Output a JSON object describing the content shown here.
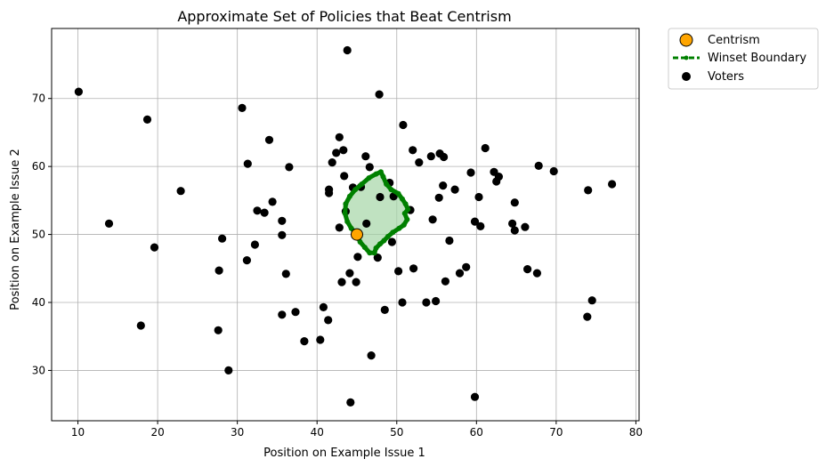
{
  "chart_data": {
    "type": "scatter",
    "title": "Approximate Set of Policies that Beat Centrism",
    "xlabel": "Position on Example Issue 1",
    "ylabel": "Position on Example Issue 2",
    "xlim": [
      6.7,
      80.4
    ],
    "ylim": [
      22.6,
      80.3
    ],
    "xticks": [
      10,
      20,
      30,
      40,
      50,
      60,
      70,
      80
    ],
    "yticks": [
      30,
      40,
      50,
      60,
      70
    ],
    "grid": true,
    "legend_position": "outside-top-right",
    "legend": [
      {
        "label": "Centrism",
        "marker": "circle",
        "color": "#ffa500",
        "edge": "#000000"
      },
      {
        "label": "Winset Boundary",
        "marker": "line-dot",
        "color": "#008000"
      },
      {
        "label": "Voters",
        "marker": "circle",
        "color": "#000000"
      }
    ],
    "colors": {
      "voters": "#000000",
      "centrism": "#ffa500",
      "boundary": "#008000",
      "fill": "#a5d6a7",
      "grid": "#b0b0b0"
    },
    "centrism": {
      "x": 45,
      "y": 50
    },
    "voters": [
      {
        "x": 10.1,
        "y": 71.0
      },
      {
        "x": 13.9,
        "y": 51.6
      },
      {
        "x": 17.9,
        "y": 36.6
      },
      {
        "x": 18.7,
        "y": 66.9
      },
      {
        "x": 19.6,
        "y": 48.1
      },
      {
        "x": 22.9,
        "y": 56.4
      },
      {
        "x": 27.7,
        "y": 44.7
      },
      {
        "x": 27.6,
        "y": 35.9
      },
      {
        "x": 28.1,
        "y": 49.4
      },
      {
        "x": 28.9,
        "y": 30.0
      },
      {
        "x": 30.6,
        "y": 68.6
      },
      {
        "x": 31.3,
        "y": 60.4
      },
      {
        "x": 31.2,
        "y": 46.2
      },
      {
        "x": 32.2,
        "y": 48.5
      },
      {
        "x": 32.5,
        "y": 53.5
      },
      {
        "x": 33.4,
        "y": 53.2
      },
      {
        "x": 34.0,
        "y": 63.9
      },
      {
        "x": 34.4,
        "y": 54.8
      },
      {
        "x": 35.6,
        "y": 52.0
      },
      {
        "x": 35.6,
        "y": 49.9
      },
      {
        "x": 35.6,
        "y": 38.2
      },
      {
        "x": 36.1,
        "y": 44.2
      },
      {
        "x": 36.5,
        "y": 59.9
      },
      {
        "x": 37.3,
        "y": 38.6
      },
      {
        "x": 38.4,
        "y": 34.3
      },
      {
        "x": 40.4,
        "y": 34.5
      },
      {
        "x": 40.8,
        "y": 39.3
      },
      {
        "x": 41.4,
        "y": 37.4
      },
      {
        "x": 41.5,
        "y": 56.6
      },
      {
        "x": 41.5,
        "y": 56.1
      },
      {
        "x": 41.9,
        "y": 60.6
      },
      {
        "x": 42.4,
        "y": 62.0
      },
      {
        "x": 42.8,
        "y": 64.3
      },
      {
        "x": 42.8,
        "y": 51.0
      },
      {
        "x": 43.1,
        "y": 43.0
      },
      {
        "x": 43.3,
        "y": 62.4
      },
      {
        "x": 43.4,
        "y": 58.6
      },
      {
        "x": 43.6,
        "y": 53.4
      },
      {
        "x": 43.8,
        "y": 77.1
      },
      {
        "x": 44.1,
        "y": 44.3
      },
      {
        "x": 44.5,
        "y": 56.9
      },
      {
        "x": 44.9,
        "y": 43.0
      },
      {
        "x": 45.1,
        "y": 46.7
      },
      {
        "x": 45.5,
        "y": 57.0
      },
      {
        "x": 46.1,
        "y": 61.5
      },
      {
        "x": 46.2,
        "y": 51.6
      },
      {
        "x": 46.6,
        "y": 59.9
      },
      {
        "x": 46.8,
        "y": 32.2
      },
      {
        "x": 47.6,
        "y": 46.6
      },
      {
        "x": 47.8,
        "y": 70.6
      },
      {
        "x": 47.9,
        "y": 55.5
      },
      {
        "x": 48.5,
        "y": 38.9
      },
      {
        "x": 49.1,
        "y": 57.6
      },
      {
        "x": 49.4,
        "y": 48.9
      },
      {
        "x": 49.6,
        "y": 55.6
      },
      {
        "x": 50.2,
        "y": 44.6
      },
      {
        "x": 50.7,
        "y": 40.0
      },
      {
        "x": 50.8,
        "y": 66.1
      },
      {
        "x": 51.7,
        "y": 53.6
      },
      {
        "x": 52.0,
        "y": 62.4
      },
      {
        "x": 52.1,
        "y": 45.0
      },
      {
        "x": 52.8,
        "y": 60.6
      },
      {
        "x": 53.7,
        "y": 40.0
      },
      {
        "x": 54.3,
        "y": 61.5
      },
      {
        "x": 54.5,
        "y": 52.2
      },
      {
        "x": 54.9,
        "y": 40.2
      },
      {
        "x": 55.3,
        "y": 55.4
      },
      {
        "x": 55.4,
        "y": 61.9
      },
      {
        "x": 55.8,
        "y": 57.2
      },
      {
        "x": 55.9,
        "y": 61.4
      },
      {
        "x": 56.1,
        "y": 43.1
      },
      {
        "x": 56.6,
        "y": 49.1
      },
      {
        "x": 57.3,
        "y": 56.6
      },
      {
        "x": 57.9,
        "y": 44.3
      },
      {
        "x": 58.7,
        "y": 45.2
      },
      {
        "x": 59.3,
        "y": 59.1
      },
      {
        "x": 59.8,
        "y": 51.9
      },
      {
        "x": 59.8,
        "y": 26.1
      },
      {
        "x": 60.3,
        "y": 55.5
      },
      {
        "x": 60.5,
        "y": 51.2
      },
      {
        "x": 61.1,
        "y": 62.7
      },
      {
        "x": 62.2,
        "y": 59.2
      },
      {
        "x": 62.5,
        "y": 57.8
      },
      {
        "x": 62.8,
        "y": 58.5
      },
      {
        "x": 64.5,
        "y": 51.6
      },
      {
        "x": 64.8,
        "y": 50.6
      },
      {
        "x": 64.8,
        "y": 54.7
      },
      {
        "x": 66.1,
        "y": 51.1
      },
      {
        "x": 66.4,
        "y": 44.9
      },
      {
        "x": 67.6,
        "y": 44.3
      },
      {
        "x": 67.8,
        "y": 60.1
      },
      {
        "x": 69.7,
        "y": 59.3
      },
      {
        "x": 73.9,
        "y": 37.9
      },
      {
        "x": 74.0,
        "y": 56.5
      },
      {
        "x": 74.5,
        "y": 40.3
      },
      {
        "x": 77.0,
        "y": 57.4
      },
      {
        "x": 44.2,
        "y": 25.3
      }
    ],
    "winset_boundary": [
      [
        45.0,
        50.0
      ],
      [
        44.3,
        50.9
      ],
      [
        43.8,
        51.9
      ],
      [
        43.5,
        53.1
      ],
      [
        43.6,
        54.5
      ],
      [
        44.1,
        55.6
      ],
      [
        44.8,
        56.6
      ],
      [
        45.6,
        57.4
      ],
      [
        46.5,
        58.3
      ],
      [
        47.4,
        58.9
      ],
      [
        48.0,
        59.2
      ],
      [
        48.3,
        58.5
      ],
      [
        48.7,
        57.4
      ],
      [
        49.3,
        56.6
      ],
      [
        50.2,
        56.0
      ],
      [
        50.7,
        55.2
      ],
      [
        51.1,
        54.5
      ],
      [
        51.4,
        53.7
      ],
      [
        51.0,
        53.1
      ],
      [
        51.3,
        52.2
      ],
      [
        50.9,
        51.4
      ],
      [
        50.3,
        50.9
      ],
      [
        49.5,
        50.3
      ],
      [
        48.9,
        49.7
      ],
      [
        48.4,
        49.1
      ],
      [
        47.9,
        48.6
      ],
      [
        47.4,
        48.0
      ],
      [
        47.2,
        47.3
      ],
      [
        46.6,
        47.3
      ],
      [
        46.0,
        48.1
      ],
      [
        45.4,
        48.9
      ],
      [
        45.0,
        50.0
      ]
    ]
  }
}
